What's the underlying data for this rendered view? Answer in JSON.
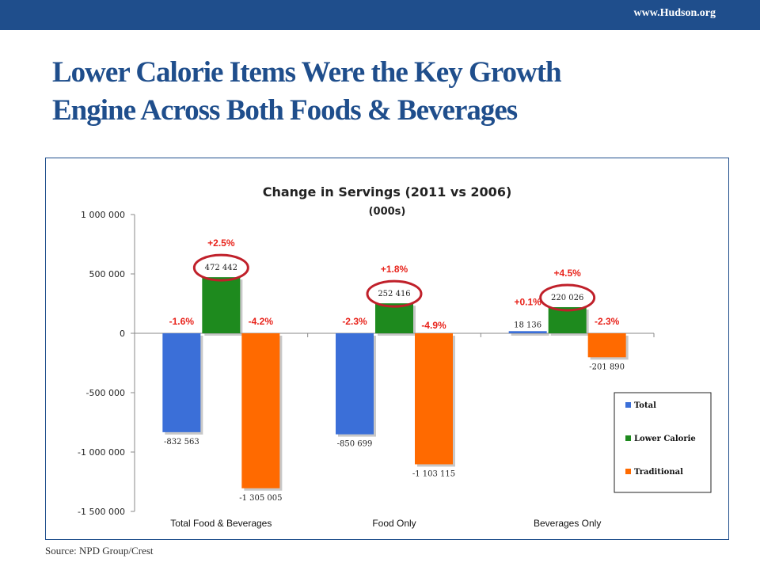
{
  "header": {
    "site": "www.Hudson.org"
  },
  "slide": {
    "title_line1": "Lower Calorie Items Were the Key Growth",
    "title_line2": "Engine Across Both Foods & Beverages",
    "source": "Source: NPD Group/Crest"
  },
  "chart_data": {
    "type": "bar",
    "title": "Change in Servings (2011 vs 2006)",
    "subtitle": "(000s)",
    "categories": [
      "Total Food & Beverages",
      "Food Only",
      "Beverages Only"
    ],
    "series": [
      {
        "name": "Total",
        "color": "#3b6fd8",
        "values": [
          -832563,
          -850699,
          18136
        ],
        "value_labels": [
          "-832 563",
          "-850 699",
          "18 136"
        ],
        "pct_labels": [
          "-1.6%",
          "-2.3%",
          "+0.1%"
        ]
      },
      {
        "name": "Lower Calorie",
        "color": "#1e8a1e",
        "values": [
          472442,
          252416,
          220026
        ],
        "value_labels": [
          "472 442",
          "252 416",
          "220 026"
        ],
        "pct_labels": [
          "+2.5%",
          "+1.8%",
          "+4.5%"
        ]
      },
      {
        "name": "Traditional",
        "color": "#ff6a00",
        "values": [
          -1305005,
          -1103115,
          -201890
        ],
        "value_labels": [
          "-1 305 005",
          "-1 103 115",
          "-201 890"
        ],
        "pct_labels": [
          "-4.2%",
          "-4.9%",
          "-2.3%"
        ]
      }
    ],
    "ylim": [
      -1500000,
      1000000
    ],
    "yticks": [
      1000000,
      500000,
      0,
      -500000,
      -1000000,
      -1500000
    ],
    "ytick_labels": [
      "1 000 000",
      "500 000",
      "0",
      "-500 000",
      "-1 000 000",
      "-1 500 000"
    ],
    "pct_label_color": "#e8231b",
    "highlight_color": "#c0202a",
    "highlight_series": "Lower Calorie",
    "legend_position": "bottom-right",
    "grid": false
  }
}
